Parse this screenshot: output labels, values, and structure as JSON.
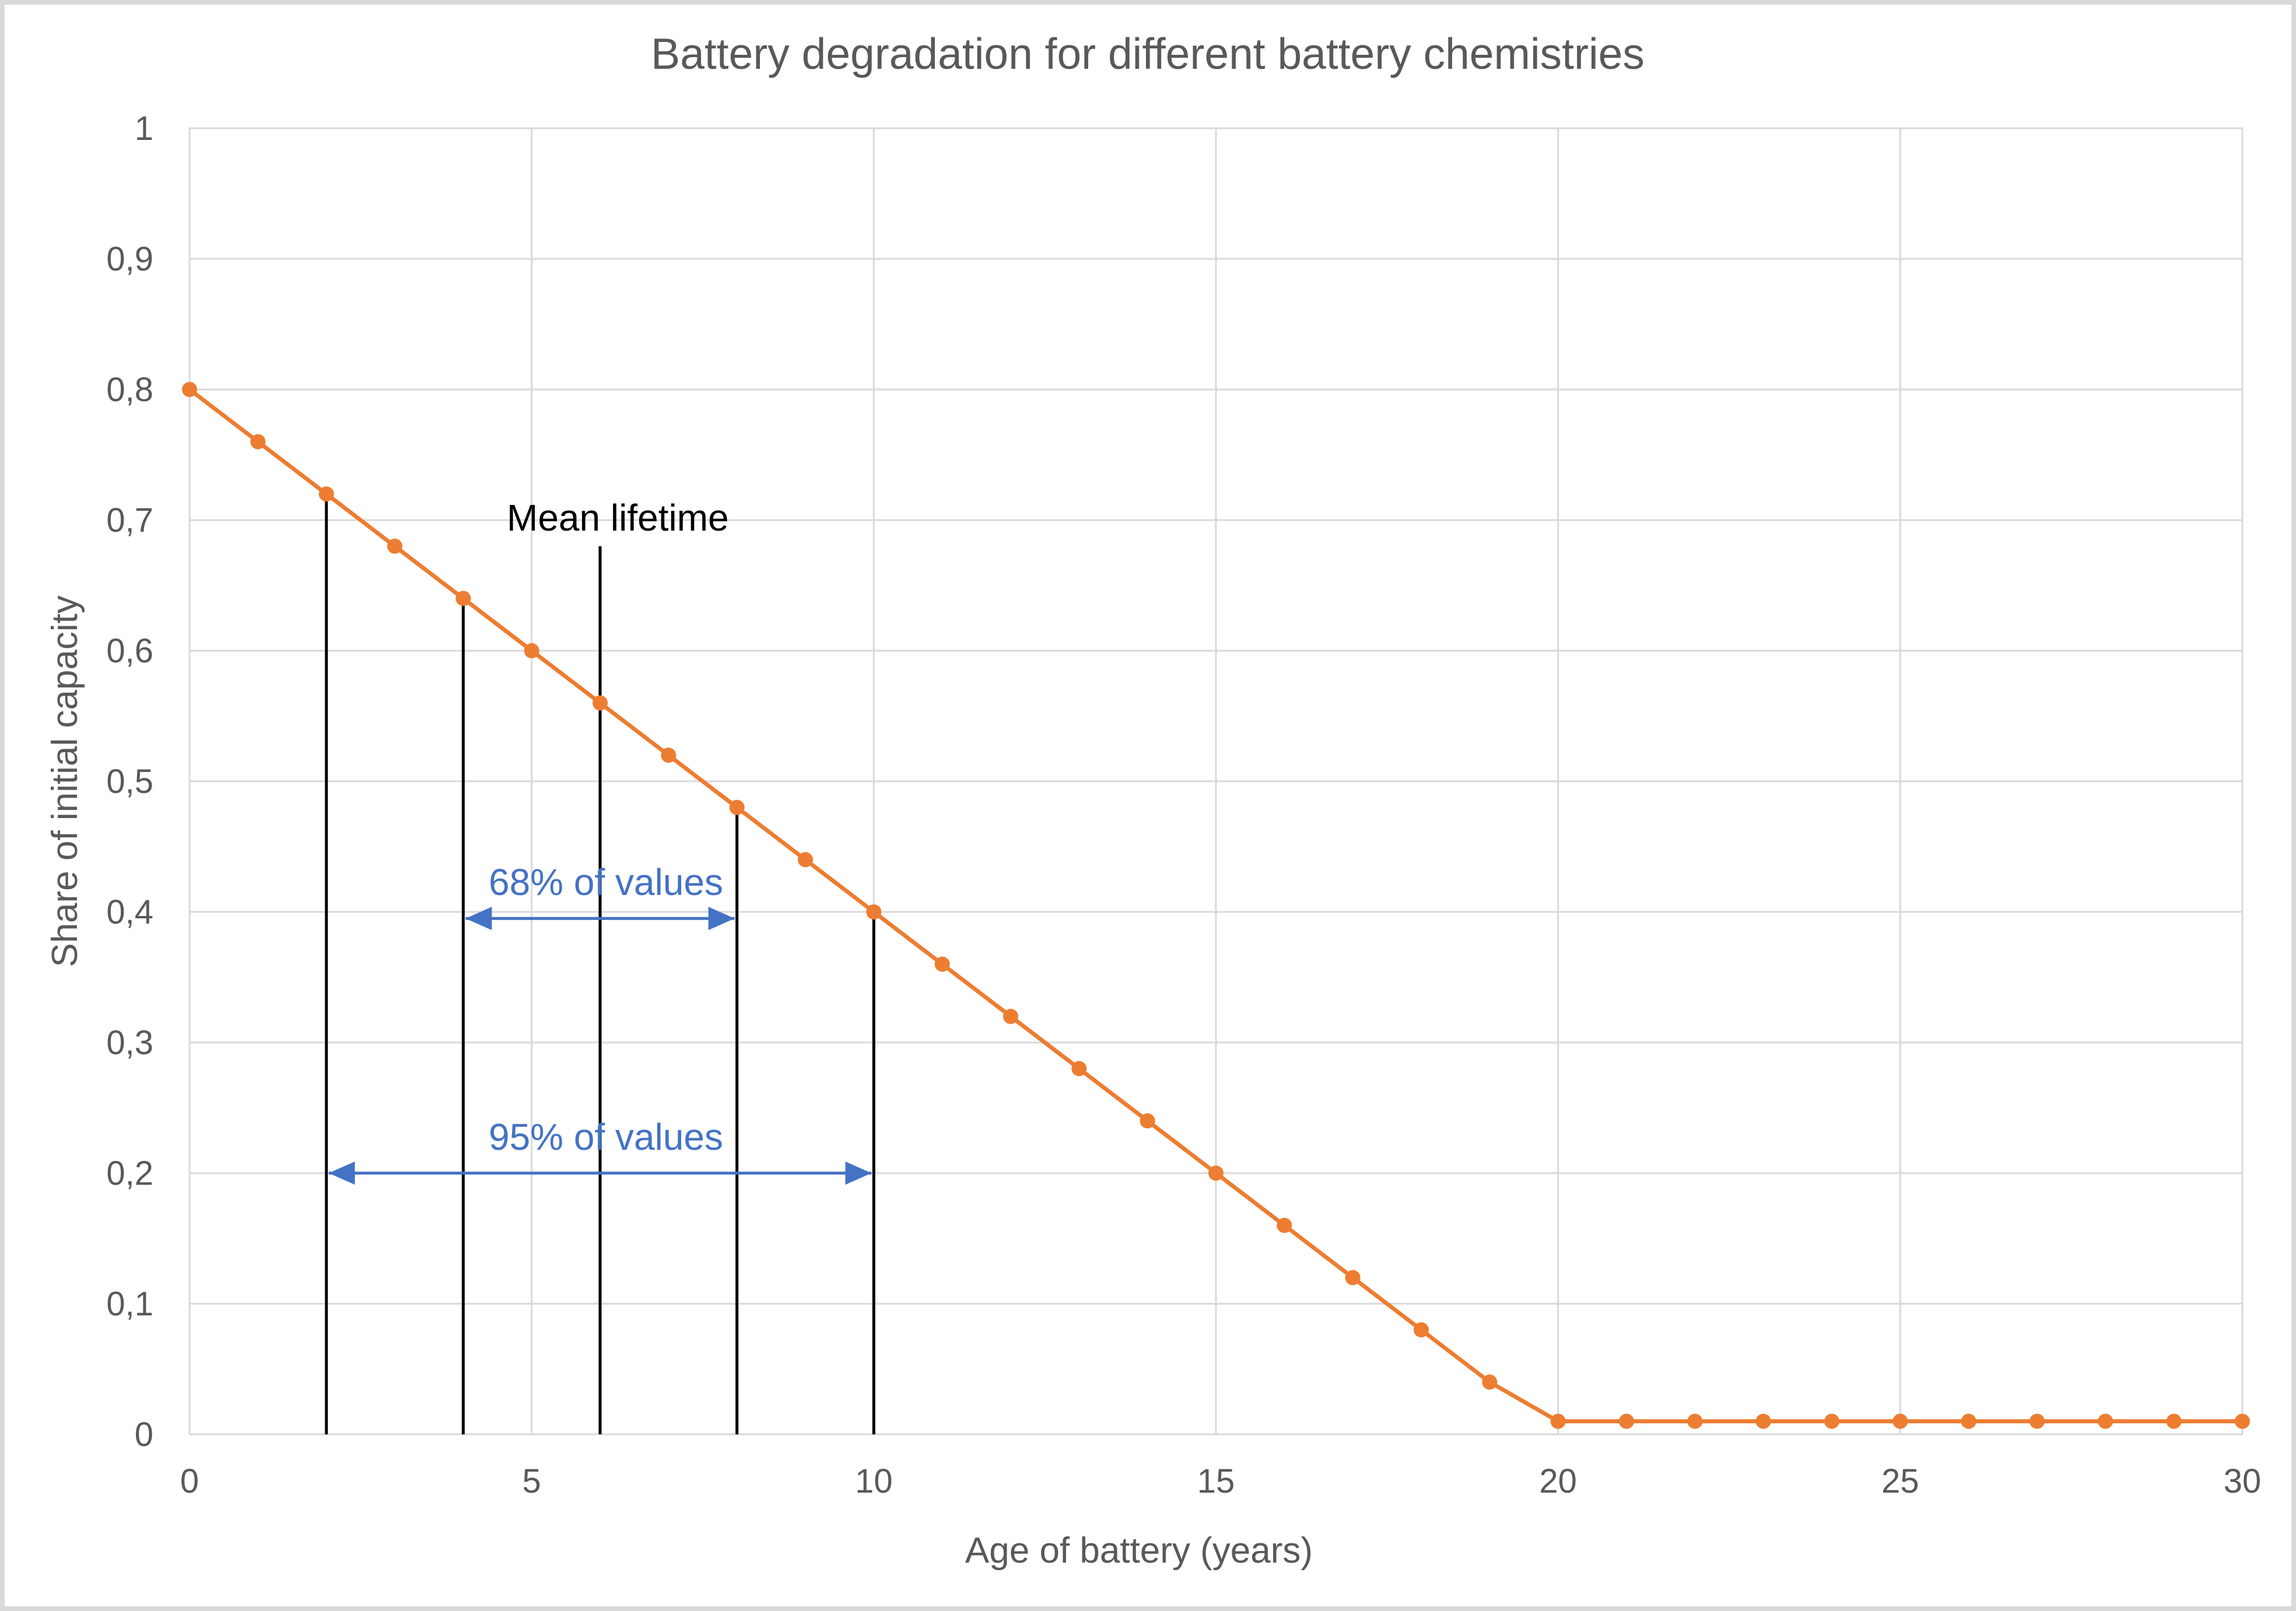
{
  "chart_data": {
    "type": "line",
    "title": "Battery degradation for different battery chemistries",
    "xlabel": "Age of battery (years)",
    "ylabel": "Share of initial capacity",
    "xlim": [
      0,
      30
    ],
    "ylim": [
      0,
      1
    ],
    "x_ticks": [
      "0",
      "5",
      "10",
      "15",
      "20",
      "25",
      "30"
    ],
    "y_ticks": [
      "0",
      "0,1",
      "0,2",
      "0,3",
      "0,4",
      "0,5",
      "0,6",
      "0,7",
      "0,8",
      "0,9",
      "1"
    ],
    "grid": true,
    "legend": "none",
    "series": [
      {
        "color": "#ed7d31",
        "marker": "circle",
        "x": [
          0,
          1,
          2,
          3,
          4,
          5,
          6,
          7,
          8,
          9,
          10,
          11,
          12,
          13,
          14,
          15,
          16,
          17,
          18,
          19,
          20,
          21,
          22,
          23,
          24,
          25,
          26,
          27,
          28,
          29,
          30
        ],
        "y": [
          0.8,
          0.76,
          0.72,
          0.68,
          0.64,
          0.6,
          0.56,
          0.52,
          0.48,
          0.44,
          0.4,
          0.36,
          0.32,
          0.28,
          0.24,
          0.2,
          0.16,
          0.12,
          0.08,
          0.04,
          0.01,
          0.01,
          0.01,
          0.01,
          0.01,
          0.01,
          0.01,
          0.01,
          0.01,
          0.01,
          0.01
        ]
      }
    ],
    "annotations": {
      "vertical_lines": [
        {
          "x": 2,
          "y_top": 0.72
        },
        {
          "x": 4,
          "y_top": 0.64
        },
        {
          "x": 6,
          "y_top": 0.68
        },
        {
          "x": 8,
          "y_top": 0.48
        },
        {
          "x": 10,
          "y_top": 0.4
        }
      ],
      "mean_label": {
        "text": "Mean lifetime",
        "x": 6,
        "y": 0.7
      },
      "ranges": [
        {
          "text": "68% of values",
          "x_from": 4,
          "x_to": 8,
          "y": 0.395
        },
        {
          "text": "95% of values",
          "x_from": 2,
          "x_to": 10,
          "y": 0.2
        }
      ],
      "range_color": "#4472c4",
      "line_color": "#000000"
    }
  }
}
